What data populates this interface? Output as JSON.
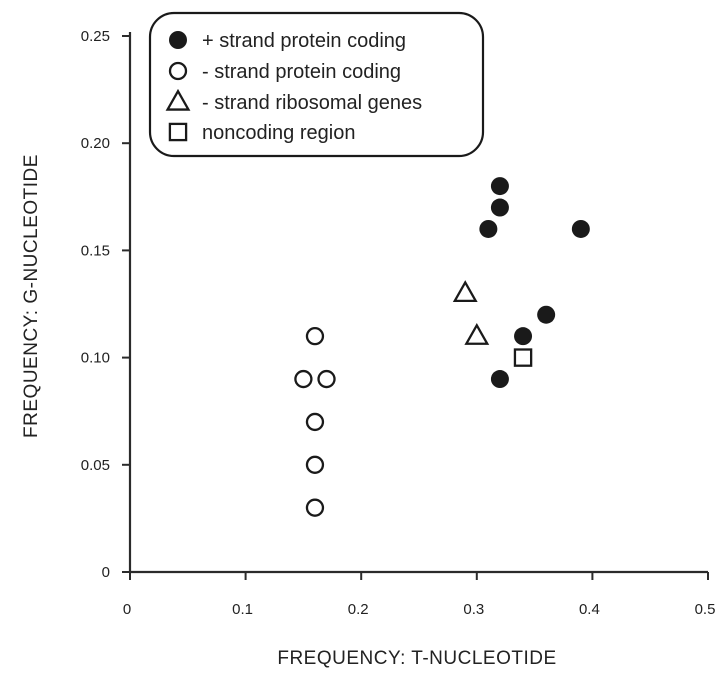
{
  "chart_data": {
    "type": "scatter",
    "xlabel": "FREQUENCY: T-NUCLEOTIDE",
    "ylabel": "FREQUENCY: G-NUCLEOTIDE",
    "xlim": [
      0,
      0.5
    ],
    "ylim": [
      0,
      0.25
    ],
    "x_ticks": [
      0,
      0.1,
      0.2,
      0.3,
      0.4,
      0.5
    ],
    "x_tick_labels": [
      "0",
      "0.1",
      "0.2",
      "0.3",
      "0.4",
      "0.5"
    ],
    "y_ticks": [
      0,
      0.05,
      0.1,
      0.15,
      0.2,
      0.25
    ],
    "y_tick_labels": [
      "0",
      "0.05",
      "0.10",
      "0.15",
      "0.20",
      "0.25"
    ],
    "grid": false,
    "legend_position": "top-left",
    "series": [
      {
        "name": "+ strand protein coding",
        "marker": "filled-circle",
        "color": "#1a1a1a",
        "points": [
          {
            "x": 0.32,
            "y": 0.18
          },
          {
            "x": 0.32,
            "y": 0.17
          },
          {
            "x": 0.31,
            "y": 0.16
          },
          {
            "x": 0.39,
            "y": 0.16
          },
          {
            "x": 0.36,
            "y": 0.12
          },
          {
            "x": 0.34,
            "y": 0.11
          },
          {
            "x": 0.32,
            "y": 0.09
          }
        ]
      },
      {
        "name": "- strand protein coding",
        "marker": "open-circle",
        "color": "#1a1a1a",
        "points": [
          {
            "x": 0.16,
            "y": 0.11
          },
          {
            "x": 0.15,
            "y": 0.09
          },
          {
            "x": 0.17,
            "y": 0.09
          },
          {
            "x": 0.16,
            "y": 0.07
          },
          {
            "x": 0.16,
            "y": 0.05
          },
          {
            "x": 0.16,
            "y": 0.03
          }
        ]
      },
      {
        "name": "- strand ribosomal genes",
        "marker": "open-triangle",
        "color": "#1a1a1a",
        "points": [
          {
            "x": 0.29,
            "y": 0.13
          },
          {
            "x": 0.3,
            "y": 0.11
          }
        ]
      },
      {
        "name": "noncoding region",
        "marker": "open-square",
        "color": "#1a1a1a",
        "points": [
          {
            "x": 0.34,
            "y": 0.1
          }
        ]
      }
    ]
  }
}
